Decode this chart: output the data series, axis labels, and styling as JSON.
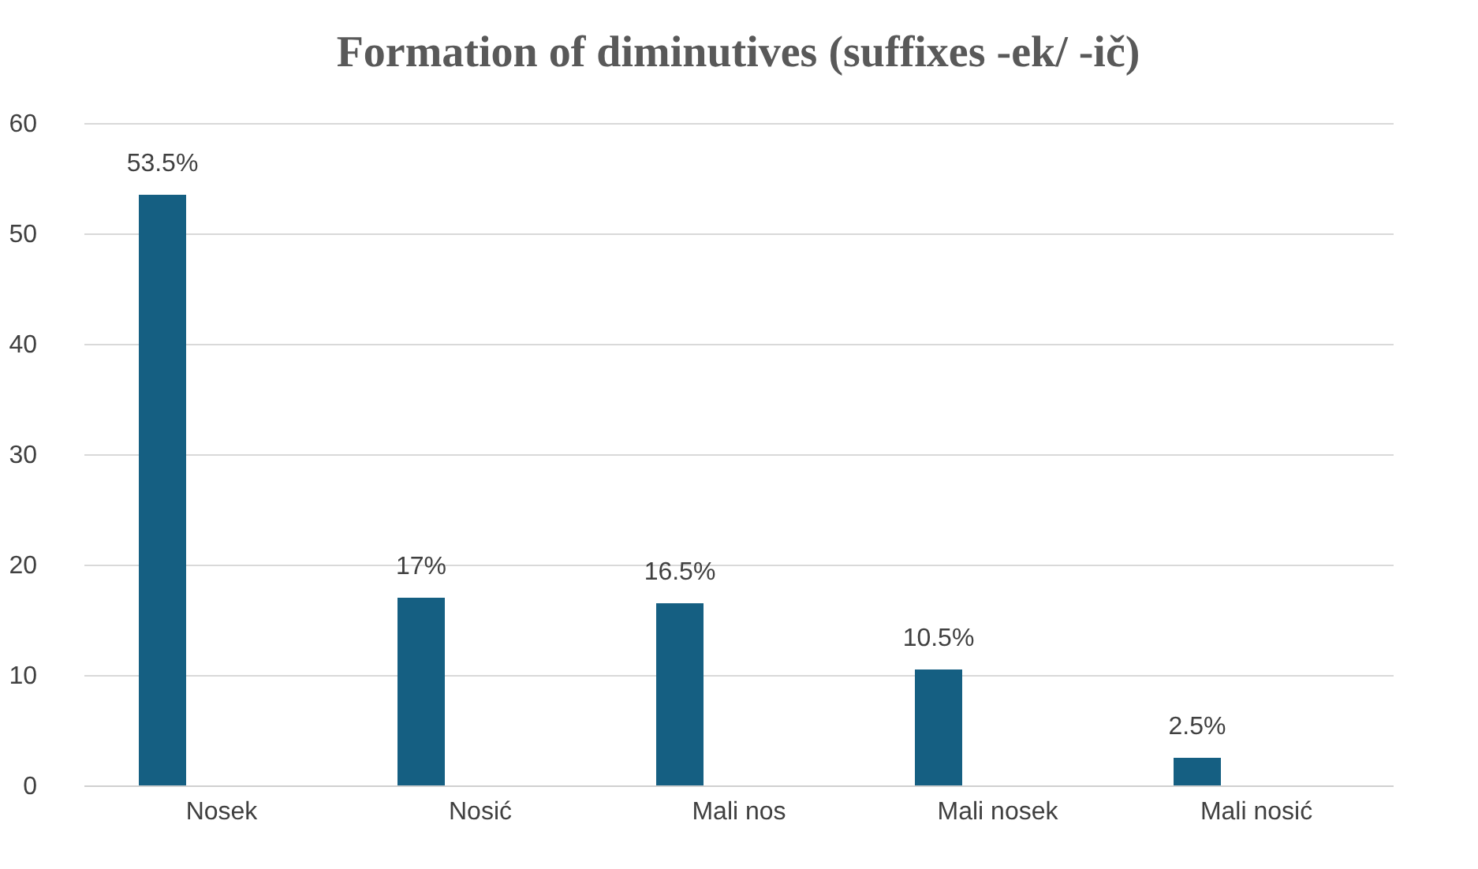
{
  "chart_data": {
    "type": "bar",
    "title": "Formation of diminutives (suffixes -ek/ -ič)",
    "categories": [
      "Nosek",
      "Nosić",
      "Mali nos",
      "Mali nosek",
      "Mali nosić"
    ],
    "values": [
      53.5,
      17,
      16.5,
      10.5,
      2.5
    ],
    "value_labels": [
      "53.5%",
      "17%",
      "16.5%",
      "10.5%",
      "2.5%"
    ],
    "color": "#155f82",
    "ylim": [
      0,
      60
    ],
    "yticks": [
      0,
      10,
      20,
      30,
      40,
      50,
      60
    ],
    "grid": "y"
  }
}
